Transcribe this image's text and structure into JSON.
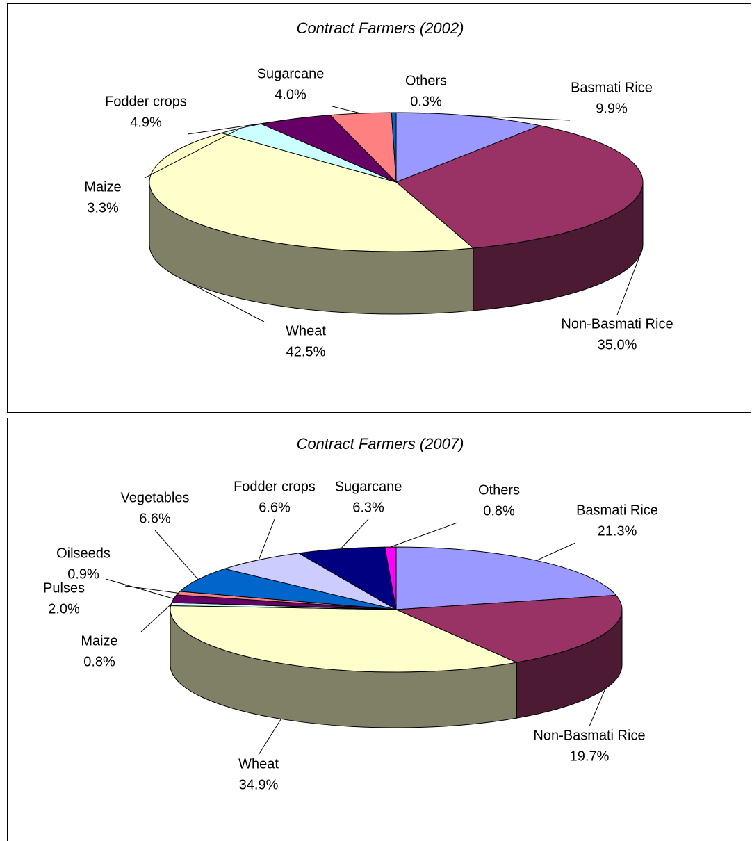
{
  "chart_data": [
    {
      "type": "pie3d",
      "title": "Contract Farmers (2002)",
      "categories": [
        "Basmati Rice",
        "Non-Basmati Rice",
        "Wheat",
        "Maize",
        "Fodder crops",
        "Sugarcane",
        "Others"
      ],
      "values": [
        9.9,
        35.0,
        42.5,
        3.3,
        4.9,
        4.0,
        0.3
      ],
      "value_labels": [
        "9.9%",
        "35.0%",
        "42.5%",
        "3.3%",
        "4.9%",
        "4.0%",
        "0.3%"
      ],
      "colors": [
        "#9999ff",
        "#993366",
        "#ffffcc",
        "#ccffff",
        "#660066",
        "#ff8080",
        "#0066cc"
      ]
    },
    {
      "type": "pie3d",
      "title": "Contract Farmers (2007)",
      "categories": [
        "Basmati Rice",
        "Non-Basmati Rice",
        "Wheat",
        "Maize",
        "Pulses",
        "Oilseeds",
        "Vegetables",
        "Fodder crops",
        "Sugarcane",
        "Others"
      ],
      "values": [
        21.3,
        19.7,
        34.9,
        0.8,
        2.0,
        0.9,
        6.6,
        6.6,
        6.3,
        0.8
      ],
      "value_labels": [
        "21.3%",
        "19.7%",
        "34.9%",
        "0.8%",
        "2.0%",
        "0.9%",
        "6.6%",
        "6.6%",
        "6.3%",
        "0.8%"
      ],
      "colors": [
        "#9999ff",
        "#993366",
        "#ffffcc",
        "#ccffff",
        "#660066",
        "#ff8080",
        "#0066cc",
        "#ccccff",
        "#000080",
        "#ff00ff"
      ]
    }
  ]
}
